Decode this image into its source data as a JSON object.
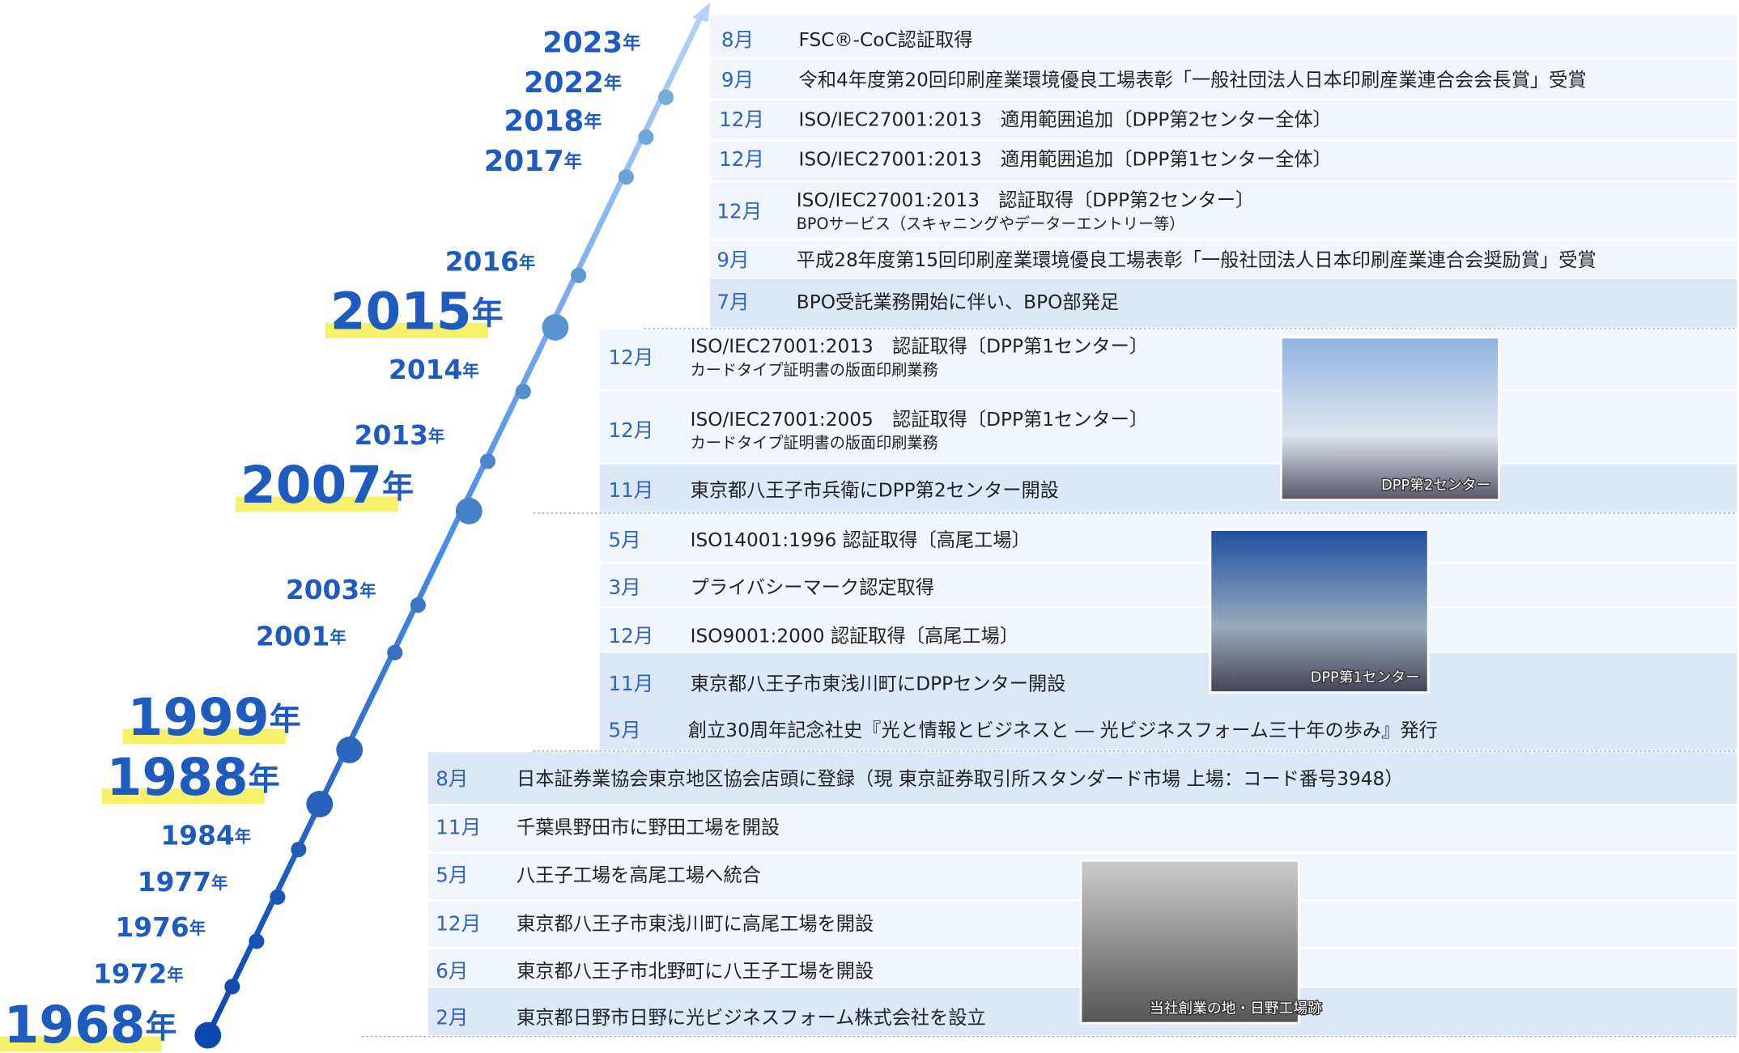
{
  "years": [
    {
      "number": "2023",
      "suffix": "年"
    },
    {
      "number": "2022",
      "suffix": "年"
    },
    {
      "number": "2018",
      "suffix": "年"
    },
    {
      "number": "2017",
      "suffix": "年"
    },
    {
      "number": "2016",
      "suffix": "年"
    },
    {
      "number": "2015",
      "suffix": "年"
    },
    {
      "number": "2014",
      "suffix": "年"
    },
    {
      "number": "2013",
      "suffix": "年"
    },
    {
      "number": "2007",
      "suffix": "年"
    },
    {
      "number": "2003",
      "suffix": "年"
    },
    {
      "number": "2001",
      "suffix": "年"
    },
    {
      "number": "1999",
      "suffix": "年"
    },
    {
      "number": "1988",
      "suffix": "年"
    },
    {
      "number": "1984",
      "suffix": "年"
    },
    {
      "number": "1977",
      "suffix": "年"
    },
    {
      "number": "1976",
      "suffix": "年"
    },
    {
      "number": "1972",
      "suffix": "年"
    },
    {
      "number": "1968",
      "suffix": "年"
    }
  ],
  "events": [
    {
      "month": "8月",
      "text": "FSC®-CoC認証取得"
    },
    {
      "month": "9月",
      "text": "令和4年度第20回印刷産業環境優良工場表彰「一般社団法人日本印刷産業連合会会長賞」受賞"
    },
    {
      "month": "12月",
      "text": "ISO/IEC27001:2013　適用範囲追加〔DPP第2センター全体〕"
    },
    {
      "month": "12月",
      "text": "ISO/IEC27001:2013　適用範囲追加〔DPP第1センター全体〕"
    },
    {
      "month": "12月",
      "text": "ISO/IEC27001:2013　認証取得〔DPP第2センター〕",
      "sub": "BPOサービス（スキャニングやデーターエントリー等）"
    },
    {
      "month": "9月",
      "text": "平成28年度第15回印刷産業環境優良工場表彰「一般社団法人日本印刷産業連合会奨励賞」受賞"
    },
    {
      "month": "7月",
      "text": "BPO受託業務開始に伴い、BPO部発足"
    },
    {
      "month": "12月",
      "text": "ISO/IEC27001:2013　認証取得〔DPP第1センター〕",
      "sub": "カードタイプ証明書の版面印刷業務"
    },
    {
      "month": "12月",
      "text": "ISO/IEC27001:2005　認証取得〔DPP第1センター〕",
      "sub": "カードタイプ証明書の版面印刷業務"
    },
    {
      "month": "11月",
      "text": "東京都八王子市兵衛にDPP第2センター開設"
    },
    {
      "month": "5月",
      "text": "ISO14001:1996 認証取得〔高尾工場〕"
    },
    {
      "month": "3月",
      "text": "プライバシーマーク認定取得"
    },
    {
      "month": "12月",
      "text": "ISO9001:2000 認証取得〔高尾工場〕"
    },
    {
      "month": "11月",
      "text": "東京都八王子市東浅川町にDPPセンター開設"
    },
    {
      "month": "5月",
      "text": "創立30周年記念社史『光と情報とビジネスと ― 光ビジネスフォーム三十年の歩み』発行"
    },
    {
      "month": "8月",
      "text": "日本証券業協会東京地区協会店頭に登録（現 東京証券取引所スタンダード市場 上場：コード番号3948）"
    },
    {
      "month": "11月",
      "text": "千葉県野田市に野田工場を開設"
    },
    {
      "month": "5月",
      "text": "八王子工場を高尾工場へ統合"
    },
    {
      "month": "12月",
      "text": "東京都八王子市東浅川町に高尾工場を開設"
    },
    {
      "month": "6月",
      "text": "東京都八王子市北野町に八王子工場を開設"
    },
    {
      "month": "2月",
      "text": "東京都日野市日野に光ビジネスフォーム株式会社を設立"
    }
  ],
  "photos": [
    {
      "caption": "DPP第2センター"
    },
    {
      "caption": "DPP第1センター"
    },
    {
      "caption": "当社創業の地・日野工場跡"
    }
  ]
}
